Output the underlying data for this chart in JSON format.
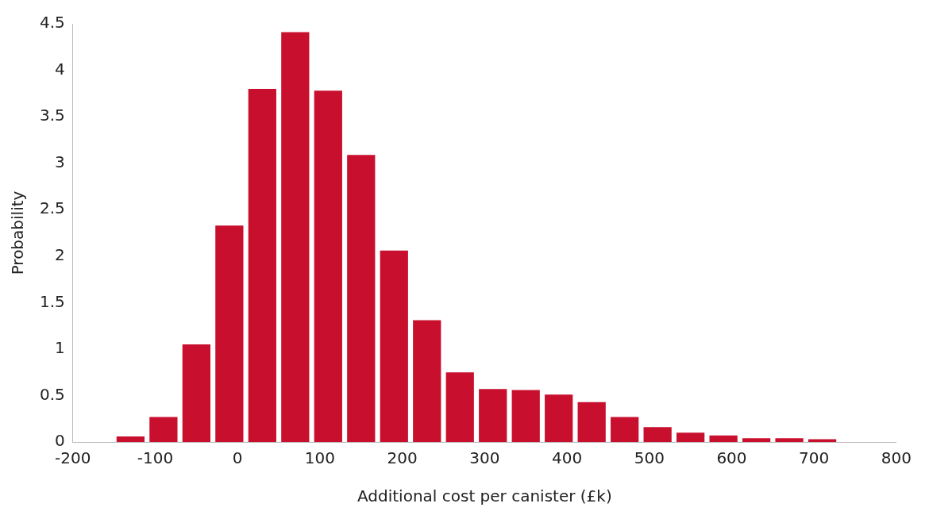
{
  "chart_data": {
    "type": "histogram",
    "xlabel": "Additional cost per canister (£k)",
    "ylabel": "Probability",
    "color": "#c8102e",
    "bins": [
      -150,
      -110,
      -70,
      -30,
      10,
      50,
      90,
      130,
      170,
      210,
      250,
      290,
      330,
      370,
      410,
      450,
      490,
      530,
      570,
      610,
      650,
      690,
      730
    ],
    "values": [
      0.06,
      0.27,
      1.05,
      2.33,
      3.8,
      4.41,
      3.78,
      3.09,
      2.06,
      1.31,
      0.75,
      0.57,
      0.56,
      0.51,
      0.43,
      0.27,
      0.16,
      0.1,
      0.07,
      0.04,
      0.04,
      0.03
    ],
    "xlim": [
      -200,
      800
    ],
    "xticks": [
      -200,
      -100,
      0,
      100,
      200,
      300,
      400,
      500,
      600,
      700,
      800
    ],
    "ylim": [
      0,
      4.5
    ],
    "yticks": [
      0,
      0.5,
      1,
      1.5,
      2,
      2.5,
      3,
      3.5,
      4,
      4.5
    ],
    "grid": false,
    "legend": false
  }
}
